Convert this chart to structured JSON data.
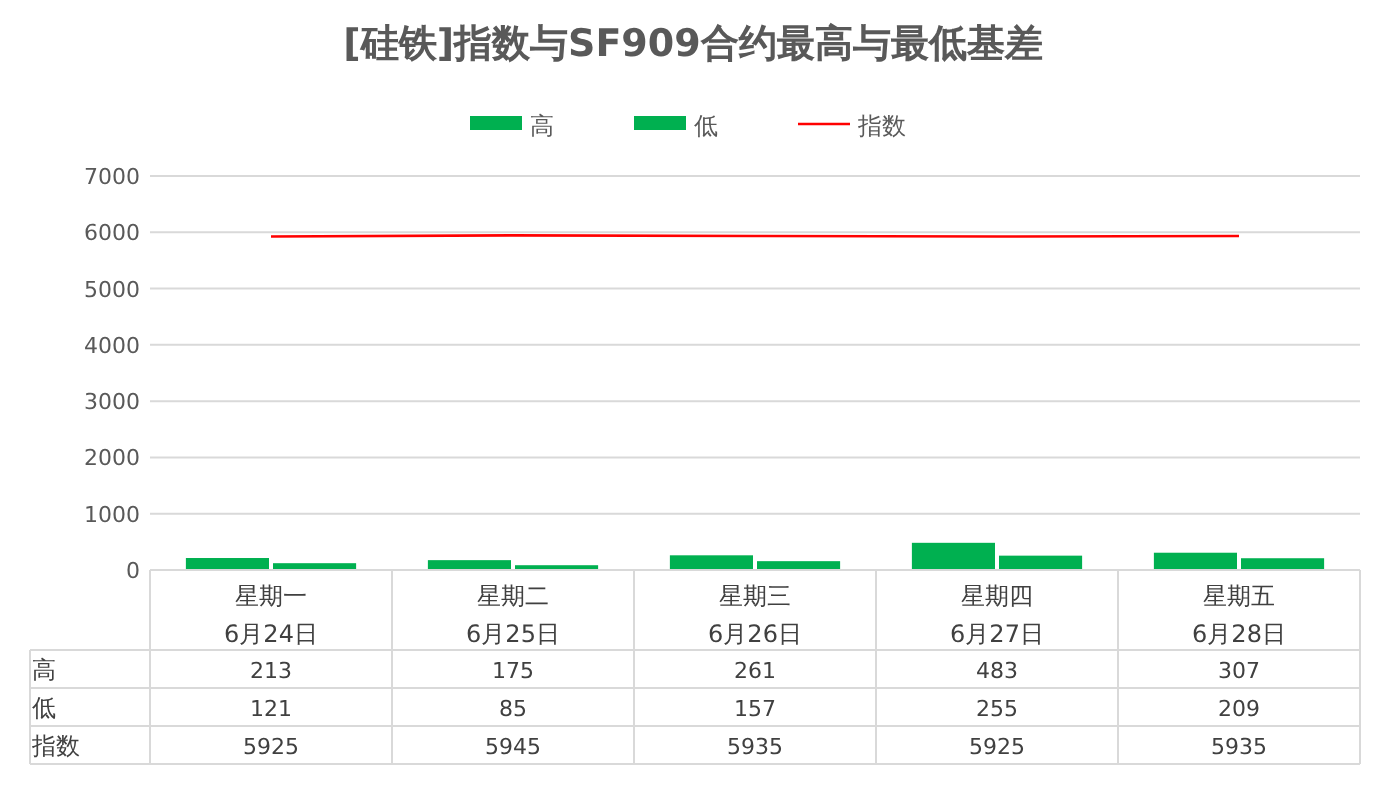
{
  "chart_data": {
    "type": "bar",
    "title": "[硅铁]指数与SF909合约最高与最低基差",
    "categories": [
      "星期一\n6月24日",
      "星期二\n6月25日",
      "星期三\n6月26日",
      "星期四\n6月27日",
      "星期五\n6月28日"
    ],
    "series": [
      {
        "name": "高",
        "color": "#00b050",
        "values": [
          213,
          175,
          261,
          483,
          307
        ]
      },
      {
        "name": "低",
        "color": "#00b050",
        "values": [
          121,
          85,
          157,
          255,
          209
        ]
      },
      {
        "name": "指数",
        "type": "line",
        "color": "#ff0000",
        "values": [
          5925,
          5945,
          5935,
          5925,
          5935
        ]
      }
    ],
    "ylim": [
      0,
      7000
    ],
    "yticks": [
      0,
      1000,
      2000,
      3000,
      4000,
      5000,
      6000,
      7000
    ],
    "grid": "y",
    "legend": "top",
    "data_labels": true
  }
}
